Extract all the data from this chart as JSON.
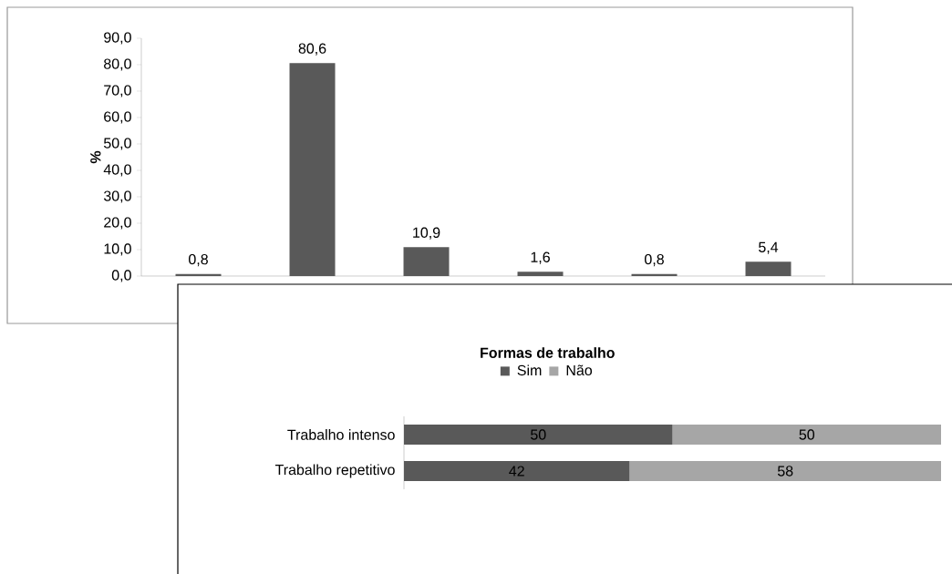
{
  "chart_data": [
    {
      "type": "bar",
      "categories": [
        null,
        null,
        null,
        null,
        null,
        null
      ],
      "values": [
        0.8,
        80.6,
        10.9,
        1.6,
        0.8,
        5.4
      ],
      "color": "#595959",
      "value_labels": [
        "0,8",
        "80,6",
        "10,9",
        "1,6",
        "0,8",
        "5,4"
      ],
      "ylabel": "%",
      "ylim": [
        0,
        90
      ],
      "yticks": [
        {
          "value": 0,
          "label": "0,0"
        },
        {
          "value": 10,
          "label": "10,0"
        },
        {
          "value": 20,
          "label": "20,0"
        },
        {
          "value": 30,
          "label": "30,0"
        },
        {
          "value": 40,
          "label": "40,0"
        },
        {
          "value": 50,
          "label": "50,0"
        },
        {
          "value": 60,
          "label": "60,0"
        },
        {
          "value": 70,
          "label": "70,0"
        },
        {
          "value": 80,
          "label": "80,0"
        },
        {
          "value": 90,
          "label": "90,0"
        }
      ]
    },
    {
      "type": "bar",
      "orientation": "horizontal",
      "stacked": true,
      "title": "Formas de trabalho",
      "legend": "top",
      "data_labels": true,
      "categories": [
        "Trabalho intenso",
        "Trabalho repetitivo"
      ],
      "series": [
        {
          "name": "Sim",
          "color": "#595959",
          "values": [
            50,
            42
          ]
        },
        {
          "name": "Não",
          "color": "#a6a6a6",
          "values": [
            50,
            58
          ]
        }
      ]
    }
  ]
}
